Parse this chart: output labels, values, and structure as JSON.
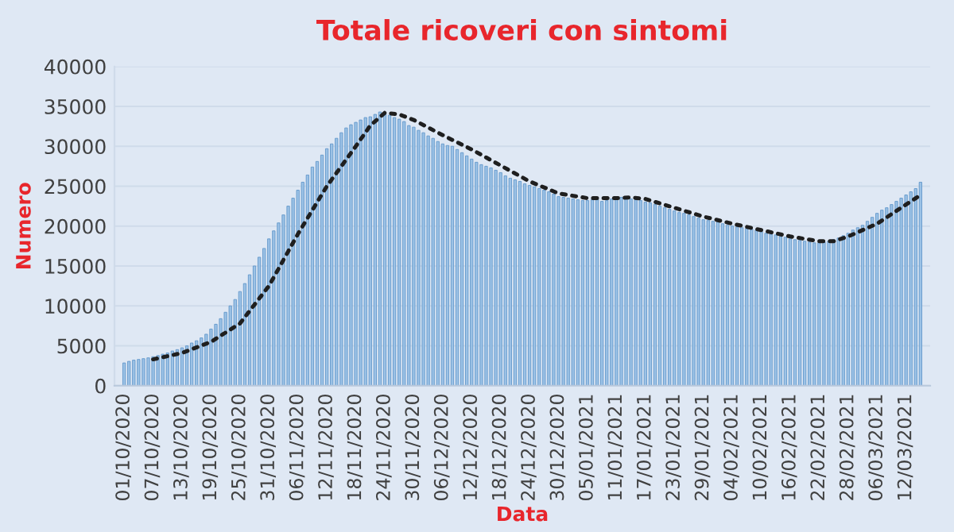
{
  "chart_data": {
    "type": "bar",
    "title": "Totale ricoveri con sintomi",
    "xlabel": "Data",
    "ylabel": "Numero",
    "x": [
      "2020-10-01",
      "2020-10-02",
      "2020-10-03",
      "2020-10-04",
      "2020-10-05",
      "2020-10-06",
      "2020-10-07",
      "2020-10-08",
      "2020-10-09",
      "2020-10-10",
      "2020-10-11",
      "2020-10-12",
      "2020-10-13",
      "2020-10-14",
      "2020-10-15",
      "2020-10-16",
      "2020-10-17",
      "2020-10-18",
      "2020-10-19",
      "2020-10-20",
      "2020-10-21",
      "2020-10-22",
      "2020-10-23",
      "2020-10-24",
      "2020-10-25",
      "2020-10-26",
      "2020-10-27",
      "2020-10-28",
      "2020-10-29",
      "2020-10-30",
      "2020-10-31",
      "2020-11-01",
      "2020-11-02",
      "2020-11-03",
      "2020-11-04",
      "2020-11-05",
      "2020-11-06",
      "2020-11-07",
      "2020-11-08",
      "2020-11-09",
      "2020-11-10",
      "2020-11-11",
      "2020-11-12",
      "2020-11-13",
      "2020-11-14",
      "2020-11-15",
      "2020-11-16",
      "2020-11-17",
      "2020-11-18",
      "2020-11-19",
      "2020-11-20",
      "2020-11-21",
      "2020-11-22",
      "2020-11-23",
      "2020-11-24",
      "2020-11-25",
      "2020-11-26",
      "2020-11-27",
      "2020-11-28",
      "2020-11-29",
      "2020-11-30",
      "2020-12-01",
      "2020-12-02",
      "2020-12-03",
      "2020-12-04",
      "2020-12-05",
      "2020-12-06",
      "2020-12-07",
      "2020-12-08",
      "2020-12-09",
      "2020-12-10",
      "2020-12-11",
      "2020-12-12",
      "2020-12-13",
      "2020-12-14",
      "2020-12-15",
      "2020-12-16",
      "2020-12-17",
      "2020-12-18",
      "2020-12-19",
      "2020-12-20",
      "2020-12-21",
      "2020-12-22",
      "2020-12-23",
      "2020-12-24",
      "2020-12-25",
      "2020-12-26",
      "2020-12-27",
      "2020-12-28",
      "2020-12-29",
      "2020-12-30",
      "2020-12-31",
      "2021-01-01",
      "2021-01-02",
      "2021-01-03",
      "2021-01-04",
      "2021-01-05",
      "2021-01-06",
      "2021-01-07",
      "2021-01-08",
      "2021-01-09",
      "2021-01-10",
      "2021-01-11",
      "2021-01-12",
      "2021-01-13",
      "2021-01-14",
      "2021-01-15",
      "2021-01-16",
      "2021-01-17",
      "2021-01-18",
      "2021-01-19",
      "2021-01-20",
      "2021-01-21",
      "2021-01-22",
      "2021-01-23",
      "2021-01-24",
      "2021-01-25",
      "2021-01-26",
      "2021-01-27",
      "2021-01-28",
      "2021-01-29",
      "2021-01-30",
      "2021-01-31",
      "2021-02-01",
      "2021-02-02",
      "2021-02-03",
      "2021-02-04",
      "2021-02-05",
      "2021-02-06",
      "2021-02-07",
      "2021-02-08",
      "2021-02-09",
      "2021-02-10",
      "2021-02-11",
      "2021-02-12",
      "2021-02-13",
      "2021-02-14",
      "2021-02-15",
      "2021-02-16",
      "2021-02-17",
      "2021-02-18",
      "2021-02-19",
      "2021-02-20",
      "2021-02-21",
      "2021-02-22",
      "2021-02-23",
      "2021-02-24",
      "2021-02-25",
      "2021-02-26",
      "2021-02-27",
      "2021-02-28",
      "2021-03-01",
      "2021-03-02",
      "2021-03-03",
      "2021-03-04",
      "2021-03-05",
      "2021-03-06",
      "2021-03-07",
      "2021-03-08",
      "2021-03-09",
      "2021-03-10",
      "2021-03-11",
      "2021-03-12",
      "2021-03-13",
      "2021-03-14",
      "2021-03-15"
    ],
    "series": [
      {
        "color": "#9cc2e6",
        "values": [
          2850,
          3050,
          3200,
          3290,
          3390,
          3490,
          3630,
          3780,
          3950,
          4100,
          4350,
          4520,
          4750,
          4990,
          5350,
          5630,
          5990,
          6450,
          7100,
          7700,
          8400,
          9200,
          10000,
          10800,
          11800,
          12800,
          13900,
          15000,
          16100,
          17200,
          18400,
          19400,
          20400,
          21400,
          22500,
          23500,
          24500,
          25500,
          26400,
          27400,
          28100,
          28900,
          29700,
          30300,
          31000,
          31700,
          32300,
          32700,
          33000,
          33300,
          33600,
          33700,
          34000,
          34300,
          34100,
          33900,
          33600,
          33400,
          33100,
          32600,
          32400,
          32000,
          31700,
          31300,
          31000,
          30600,
          30300,
          30100,
          30000,
          29600,
          29200,
          28800,
          28400,
          28000,
          27700,
          27500,
          27300,
          27000,
          26700,
          26300,
          26000,
          25800,
          25600,
          25300,
          25100,
          24900,
          24700,
          24500,
          24300,
          24000,
          23700,
          23600,
          23500,
          23400,
          23300,
          23200,
          23200,
          23300,
          23300,
          23100,
          23200,
          23400,
          23500,
          23600,
          23500,
          23400,
          23300,
          23200,
          23000,
          22900,
          22700,
          22500,
          22300,
          22100,
          21900,
          21700,
          21600,
          21400,
          21200,
          21000,
          20800,
          20700,
          20600,
          20500,
          20300,
          20100,
          20000,
          19900,
          19800,
          19700,
          19600,
          19500,
          19300,
          19100,
          19000,
          18900,
          18700,
          18600,
          18400,
          18300,
          18200,
          18100,
          18000,
          17900,
          17900,
          18000,
          18100,
          18300,
          18500,
          18800,
          19100,
          19500,
          19800,
          20100,
          20600,
          21100,
          21600,
          22000,
          22300,
          22700,
          23100,
          23500,
          23900,
          24300,
          24700,
          25500
        ]
      },
      {
        "type": "line",
        "color": "#1f1f1f",
        "line_style": "dotted",
        "x": [
          "2020-10-07",
          "2020-10-13",
          "2020-10-19",
          "2020-10-25",
          "2020-10-31",
          "2020-11-06",
          "2020-11-12",
          "2020-11-18",
          "2020-11-21",
          "2020-11-24",
          "2020-11-27",
          "2020-11-30",
          "2020-12-06",
          "2020-12-12",
          "2020-12-18",
          "2020-12-24",
          "2020-12-30",
          "2021-01-05",
          "2021-01-11",
          "2021-01-14",
          "2021-01-17",
          "2021-01-23",
          "2021-01-29",
          "2021-02-04",
          "2021-02-10",
          "2021-02-16",
          "2021-02-22",
          "2021-02-25",
          "2021-02-28",
          "2021-03-06",
          "2021-03-12",
          "2021-03-15"
        ],
        "values": [
          3300,
          4100,
          5500,
          7800,
          12500,
          19000,
          25000,
          30000,
          32600,
          34200,
          34000,
          33300,
          31400,
          29600,
          27600,
          25600,
          24100,
          23500,
          23500,
          23600,
          23400,
          22300,
          21200,
          20300,
          19500,
          18700,
          18100,
          18100,
          18700,
          20300,
          22700,
          23900
        ]
      }
    ],
    "xlim": [
      "2020-09-29",
      "2021-03-17"
    ],
    "xticks": [
      {
        "value": "2020-10-01",
        "label": "01/10/2020"
      },
      {
        "value": "2020-10-07",
        "label": "07/10/2020"
      },
      {
        "value": "2020-10-13",
        "label": "13/10/2020"
      },
      {
        "value": "2020-10-19",
        "label": "19/10/2020"
      },
      {
        "value": "2020-10-25",
        "label": "25/10/2020"
      },
      {
        "value": "2020-10-31",
        "label": "31/10/2020"
      },
      {
        "value": "2020-11-06",
        "label": "06/11/2020"
      },
      {
        "value": "2020-11-12",
        "label": "12/11/2020"
      },
      {
        "value": "2020-11-18",
        "label": "18/11/2020"
      },
      {
        "value": "2020-11-24",
        "label": "24/11/2020"
      },
      {
        "value": "2020-11-30",
        "label": "30/11/2020"
      },
      {
        "value": "2020-12-06",
        "label": "06/12/2020"
      },
      {
        "value": "2020-12-12",
        "label": "12/12/2020"
      },
      {
        "value": "2020-12-18",
        "label": "18/12/2020"
      },
      {
        "value": "2020-12-24",
        "label": "24/12/2020"
      },
      {
        "value": "2020-12-30",
        "label": "30/12/2020"
      },
      {
        "value": "2021-01-05",
        "label": "05/01/2021"
      },
      {
        "value": "2021-01-11",
        "label": "11/01/2021"
      },
      {
        "value": "2021-01-17",
        "label": "17/01/2021"
      },
      {
        "value": "2021-01-23",
        "label": "23/01/2021"
      },
      {
        "value": "2021-01-29",
        "label": "29/01/2021"
      },
      {
        "value": "2021-02-04",
        "label": "04/02/2021"
      },
      {
        "value": "2021-02-10",
        "label": "10/02/2021"
      },
      {
        "value": "2021-02-16",
        "label": "16/02/2021"
      },
      {
        "value": "2021-02-22",
        "label": "22/02/2021"
      },
      {
        "value": "2021-02-28",
        "label": "28/02/2021"
      },
      {
        "value": "2021-03-06",
        "label": "06/03/2021"
      },
      {
        "value": "2021-03-12",
        "label": "12/03/2021"
      }
    ],
    "ylim": [
      0,
      40000
    ],
    "yticks": [
      0,
      5000,
      10000,
      15000,
      20000,
      25000,
      30000,
      35000,
      40000
    ],
    "grid": "y",
    "legend": false
  }
}
